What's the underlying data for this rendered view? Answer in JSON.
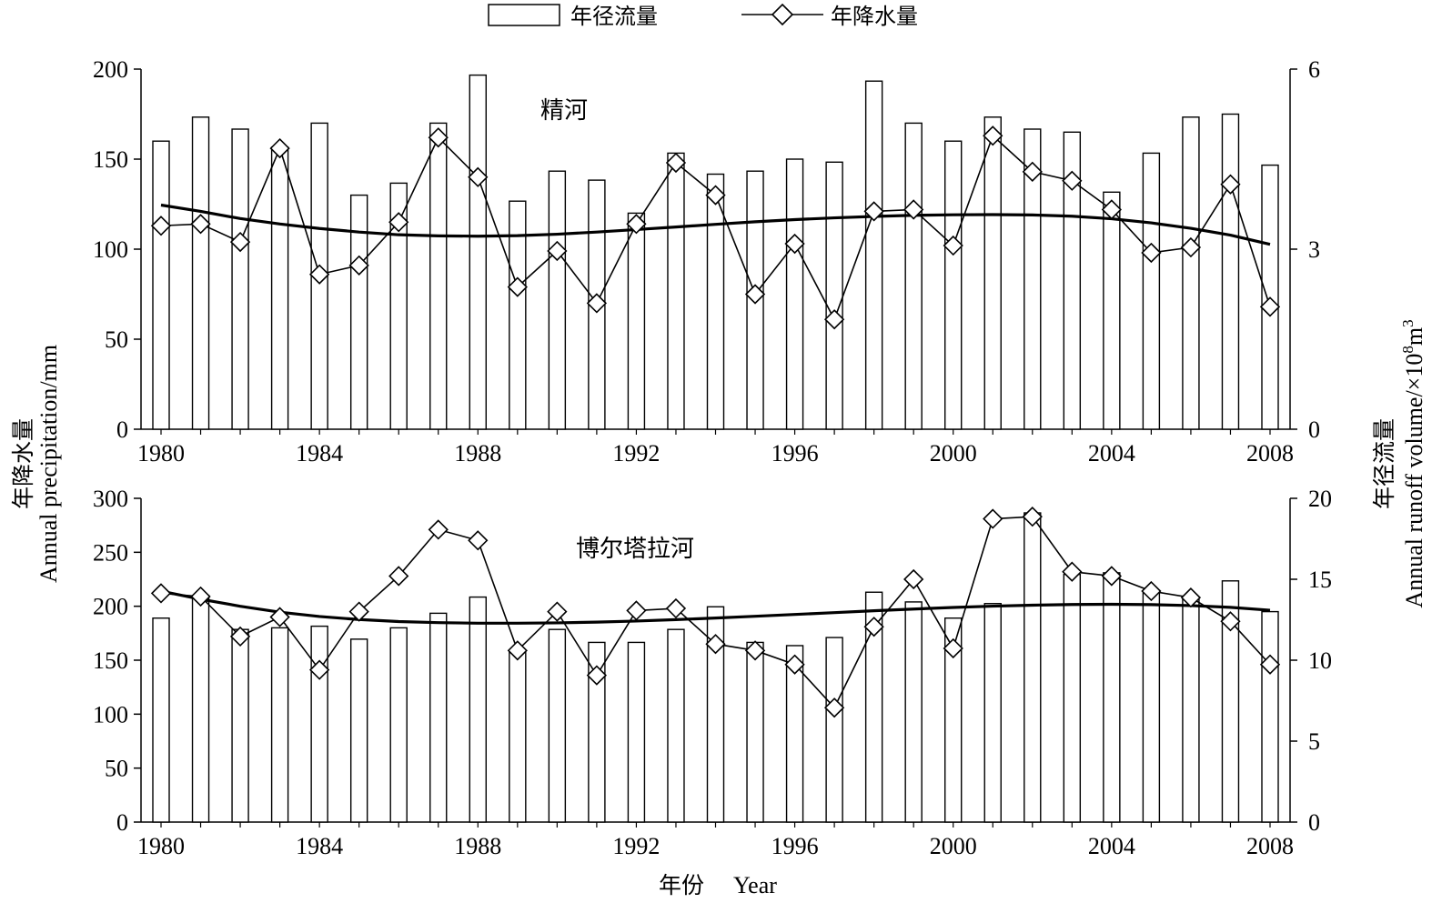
{
  "legend": {
    "bar_label": "年径流量",
    "line_label": "年降水量",
    "placement": "top-center"
  },
  "axis_labels": {
    "left_cn": "年降水量",
    "left_en": "Annual precipitation/mm",
    "right_cn": "年径流量",
    "right_en_main": "Annual runoff volume/",
    "right_en_times": "×",
    "right_en_base": "10",
    "right_en_exp": "8",
    "right_en_unit": "m",
    "right_en_unit_exp": "3",
    "x_cn": "年份",
    "x_en": "Year"
  },
  "colors": {
    "ink": "#000000",
    "background": "#ffffff",
    "bar_fill": "#ffffff"
  },
  "chart_data": [
    {
      "type": "bar+line",
      "title": "精河",
      "x": [
        1980,
        1981,
        1982,
        1983,
        1984,
        1985,
        1986,
        1987,
        1988,
        1989,
        1990,
        1991,
        1992,
        1993,
        1994,
        1995,
        1996,
        1997,
        1998,
        1999,
        2000,
        2001,
        2002,
        2003,
        2004,
        2005,
        2006,
        2007,
        2008
      ],
      "xticks": [
        "1980",
        "1984",
        "1988",
        "1992",
        "1996",
        "2000",
        "2004",
        "2008"
      ],
      "left_axis": {
        "ylim": [
          0,
          200
        ],
        "ticks": [
          "0",
          "50",
          "100",
          "150",
          "200"
        ]
      },
      "right_axis": {
        "ylim": [
          0,
          6
        ],
        "ticks": [
          "0",
          "3",
          "6"
        ]
      },
      "series": [
        {
          "name": "年径流量",
          "kind": "bar",
          "axis": "right",
          "values": [
            4.8,
            5.2,
            5.0,
            4.7,
            5.1,
            3.9,
            4.1,
            5.1,
            5.9,
            3.8,
            4.3,
            4.15,
            3.6,
            4.6,
            4.25,
            4.3,
            4.5,
            4.45,
            5.8,
            5.1,
            4.8,
            5.2,
            5.0,
            4.95,
            3.95,
            4.6,
            5.2,
            5.25,
            4.4
          ]
        },
        {
          "name": "年降水量",
          "kind": "line-diamond",
          "axis": "left",
          "values": [
            113,
            114,
            104,
            156,
            86,
            91,
            115,
            162,
            140,
            79,
            99,
            70,
            114,
            148,
            130,
            75,
            103,
            61,
            121,
            122,
            102,
            163,
            143,
            138,
            122,
            98,
            101,
            136,
            68
          ]
        },
        {
          "kind": "trend",
          "axis": "left",
          "values": [
            124.5,
            121,
            117,
            114,
            111.5,
            109.5,
            108,
            107.4,
            107.2,
            107.5,
            108.3,
            109.5,
            110.9,
            112.3,
            113.8,
            115.2,
            116.4,
            117.4,
            118.2,
            118.8,
            119.1,
            119.2,
            119,
            118.3,
            116.9,
            114.6,
            111.6,
            107.8,
            102.7
          ]
        }
      ]
    },
    {
      "type": "bar+line",
      "title": "博尔塔拉河",
      "x": [
        1980,
        1981,
        1982,
        1983,
        1984,
        1985,
        1986,
        1987,
        1988,
        1989,
        1990,
        1991,
        1992,
        1993,
        1994,
        1995,
        1996,
        1997,
        1998,
        1999,
        2000,
        2001,
        2002,
        2003,
        2004,
        2005,
        2006,
        2007,
        2008
      ],
      "xticks": [
        "1980",
        "1984",
        "1988",
        "1992",
        "1996",
        "2000",
        "2004",
        "2008"
      ],
      "left_axis": {
        "ylim": [
          0,
          300
        ],
        "ticks": [
          "0",
          "50",
          "100",
          "150",
          "200",
          "250",
          "300"
        ]
      },
      "right_axis": {
        "ylim": [
          0,
          20
        ],
        "ticks": [
          "0",
          "5",
          "10",
          "15",
          "20"
        ]
      },
      "series": [
        {
          "name": "年径流量",
          "kind": "bar",
          "axis": "right",
          "values": [
            12.6,
            14.0,
            11.9,
            12.0,
            12.1,
            11.3,
            12.0,
            12.9,
            13.9,
            10.6,
            11.9,
            11.1,
            11.1,
            11.9,
            13.3,
            11.1,
            10.9,
            11.4,
            14.2,
            13.6,
            12.6,
            13.5,
            19.1,
            15.3,
            15.4,
            14.2,
            13.8,
            14.9,
            13.0
          ]
        },
        {
          "name": "年降水量",
          "kind": "line-diamond",
          "axis": "left",
          "values": [
            212,
            209,
            172,
            190,
            141,
            195,
            228,
            271,
            261,
            159,
            195,
            136,
            196,
            198,
            165,
            159,
            146,
            106,
            181,
            225,
            161,
            281,
            283,
            232,
            228,
            214,
            208,
            186,
            146
          ]
        },
        {
          "kind": "trend",
          "axis": "left",
          "values": [
            214,
            206.5,
            200,
            194.5,
            190.5,
            187.7,
            185.8,
            184.8,
            184.3,
            184.3,
            184.6,
            185.3,
            186.3,
            187.6,
            189.1,
            190.7,
            192.4,
            194.1,
            195.8,
            197.4,
            198.9,
            200.1,
            201,
            201.6,
            201.8,
            201.5,
            200.6,
            199,
            196.3
          ]
        }
      ]
    }
  ]
}
